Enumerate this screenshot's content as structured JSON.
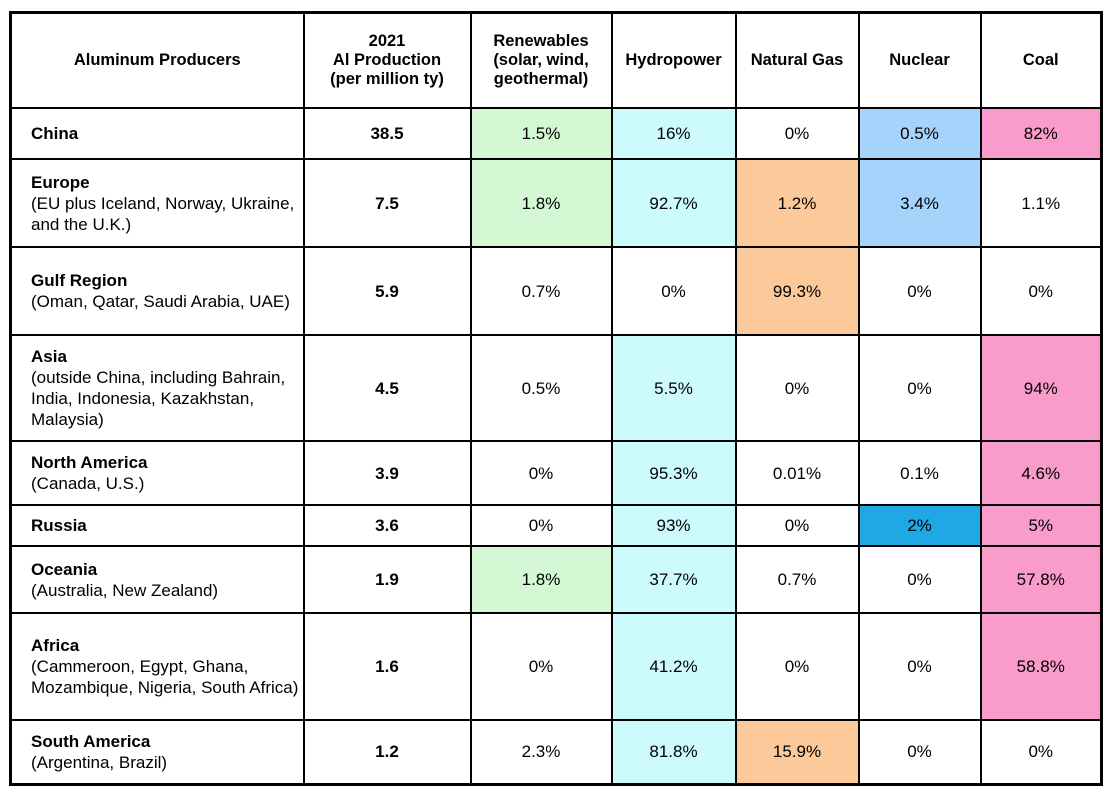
{
  "chart_data": {
    "type": "table",
    "colors": {
      "renewables": "#d4f8d4",
      "hydropower": "#cdfafc",
      "natural_gas": "#fcc99a",
      "nuclear_light": "#a5d3fb",
      "nuclear_strong": "#1fa8e4",
      "coal": "#f99bcb"
    },
    "headers": [
      [
        "Aluminum Producers"
      ],
      [
        "2021",
        "Al Production",
        "(per million ty)"
      ],
      [
        "Renewables",
        "(solar, wind,",
        "geothermal)"
      ],
      [
        "Hydropower"
      ],
      [
        "Natural Gas"
      ],
      [
        "Nuclear"
      ],
      [
        "Coal"
      ]
    ],
    "rows": [
      {
        "name": "China",
        "desc": "",
        "production": "38.5",
        "cells": [
          "1.5%",
          "16%",
          "0%",
          "0.5%",
          "82%"
        ],
        "fills": [
          "renewables",
          "hydropower",
          "",
          "nuclear_light",
          "coal"
        ]
      },
      {
        "name": "Europe",
        "desc": "(EU plus Iceland, Norway, Ukraine, and the U.K.)",
        "production": "7.5",
        "cells": [
          "1.8%",
          "92.7%",
          "1.2%",
          "3.4%",
          "1.1%"
        ],
        "fills": [
          "renewables",
          "hydropower",
          "natural_gas",
          "nuclear_light",
          ""
        ]
      },
      {
        "name": "Gulf Region",
        "desc": "(Oman, Qatar, Saudi Arabia, UAE)",
        "production": "5.9",
        "cells": [
          "0.7%",
          "0%",
          "99.3%",
          "0%",
          "0%"
        ],
        "fills": [
          "",
          "",
          "natural_gas",
          "",
          ""
        ]
      },
      {
        "name": "Asia",
        "desc": "(outside China, including Bahrain, India, Indonesia, Kazakhstan, Malaysia)",
        "production": "4.5",
        "cells": [
          "0.5%",
          "5.5%",
          "0%",
          "0%",
          "94%"
        ],
        "fills": [
          "",
          "hydropower",
          "",
          "",
          "coal"
        ]
      },
      {
        "name": "North America",
        "desc": "(Canada, U.S.)",
        "production": "3.9",
        "cells": [
          "0%",
          "95.3%",
          "0.01%",
          "0.1%",
          "4.6%"
        ],
        "fills": [
          "",
          "hydropower",
          "",
          "",
          "coal"
        ]
      },
      {
        "name": "Russia",
        "desc": "",
        "production": "3.6",
        "cells": [
          "0%",
          "93%",
          "0%",
          "2%",
          "5%"
        ],
        "fills": [
          "",
          "hydropower",
          "",
          "nuclear_strong",
          "coal"
        ]
      },
      {
        "name": "Oceania",
        "desc": "(Australia, New Zealand)",
        "production": "1.9",
        "cells": [
          "1.8%",
          "37.7%",
          "0.7%",
          "0%",
          "57.8%"
        ],
        "fills": [
          "renewables",
          "hydropower",
          "",
          "",
          "coal"
        ]
      },
      {
        "name": "Africa",
        "desc": "(Cammeroon, Egypt, Ghana, Mozambique, Nigeria, South Africa)",
        "production": "1.6",
        "cells": [
          "0%",
          "41.2%",
          "0%",
          "0%",
          "58.8%"
        ],
        "fills": [
          "",
          "hydropower",
          "",
          "",
          "coal"
        ]
      },
      {
        "name": "South America",
        "desc": "(Argentina, Brazil)",
        "production": "1.2",
        "cells": [
          "2.3%",
          "81.8%",
          "15.9%",
          "0%",
          "0%"
        ],
        "fills": [
          "",
          "hydropower",
          "natural_gas",
          "",
          ""
        ]
      }
    ]
  }
}
